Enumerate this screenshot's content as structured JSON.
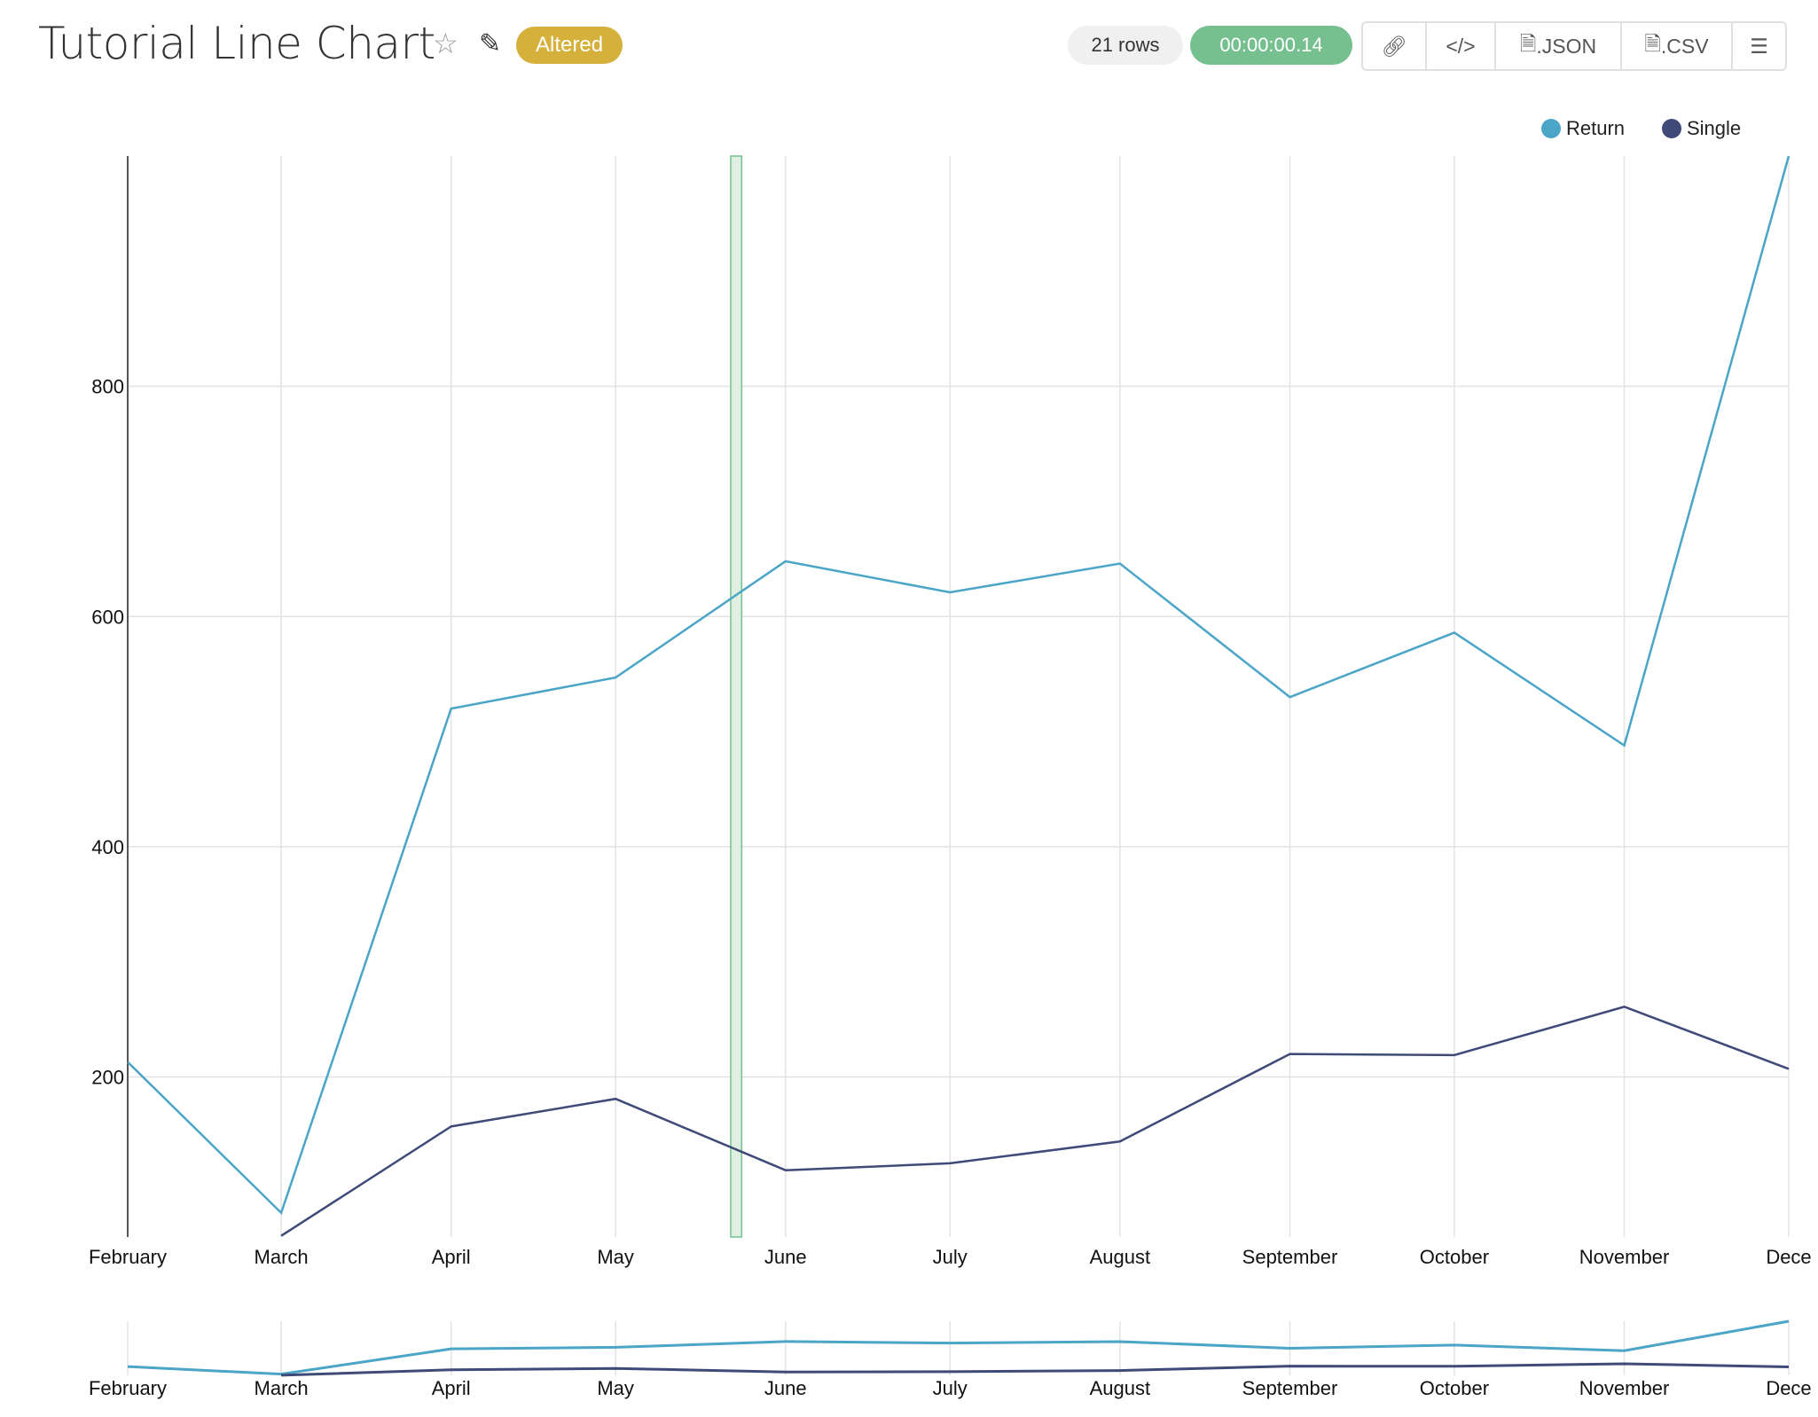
{
  "header": {
    "title": "Tutorial Line Chart",
    "status_badge": "Altered",
    "row_count": "21 rows",
    "query_time": "00:00:00.14",
    "icons": {
      "favorite": "star-icon",
      "edit": "edit-icon"
    },
    "toolbar": [
      {
        "icon": "link-icon",
        "label": ""
      },
      {
        "icon": "code-icon",
        "label": ""
      },
      {
        "icon": "json-file-icon",
        "label": ".JSON"
      },
      {
        "icon": "csv-file-icon",
        "label": ".CSV"
      },
      {
        "icon": "menu-icon",
        "label": ""
      }
    ]
  },
  "colors": {
    "return": "#4aa5c6",
    "single": "#3f4a78",
    "badge": "#d5b03b",
    "time": "#76c08f",
    "band": "#76c08f"
  },
  "chart_data": {
    "type": "line",
    "x_ticks": [
      "February",
      "March",
      "April",
      "May",
      "June",
      "July",
      "August",
      "September",
      "October",
      "November",
      "Dece"
    ],
    "x": [
      "Feb 1",
      "Mar 1",
      "Apr 1",
      "May 1",
      "Jun 1",
      "Jul 1",
      "Aug 1",
      "Sep 1",
      "Oct 1",
      "Nov 1",
      "Dec 1"
    ],
    "y_ticks": [
      200,
      400,
      600,
      800
    ],
    "ylim": [
      61,
      1000
    ],
    "grid": true,
    "legend_placement": "top-right",
    "series": [
      {
        "name": "Return",
        "values": [
          213,
          82,
          520,
          547,
          648,
          621,
          646,
          530,
          586,
          488,
          1000
        ]
      },
      {
        "name": "Single",
        "values": [
          null,
          62,
          157,
          181,
          119,
          125,
          144,
          220,
          219,
          261,
          207
        ]
      }
    ],
    "annotation_band": {
      "start": "May 22",
      "end": "May 24"
    },
    "overview": {
      "shown": true
    }
  }
}
